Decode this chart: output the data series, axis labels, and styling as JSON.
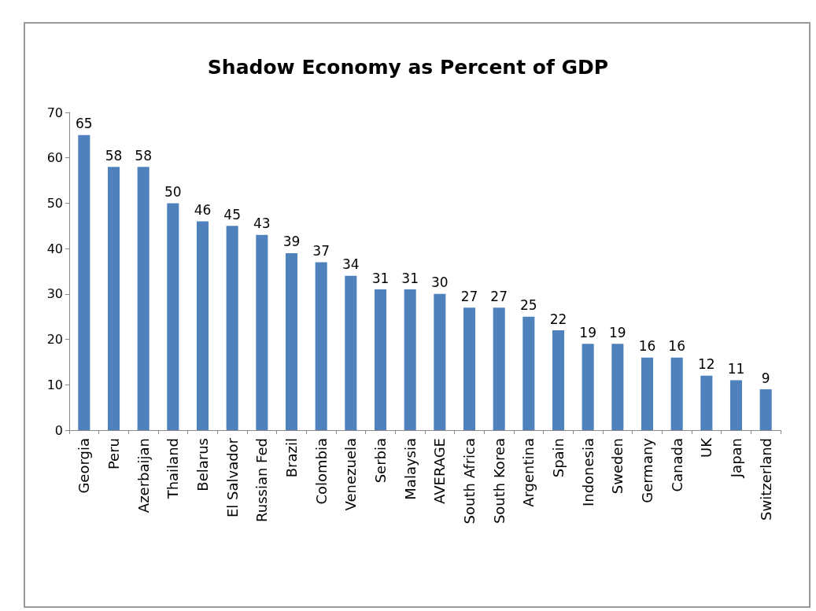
{
  "chart_data": {
    "type": "bar",
    "title": "Shadow Economy as Percent of GDP",
    "categories": [
      "Georgia",
      "Peru",
      "Azerbaijan",
      "Thailand",
      "Belarus",
      "El Salvador",
      "Russian Fed",
      "Brazil",
      "Colombia",
      "Venezuela",
      "Serbia",
      "Malaysia",
      "AVERAGE",
      "South Africa",
      "South Korea",
      "Argentina",
      "Spain",
      "Indonesia",
      "Sweden",
      "Germany",
      "Canada",
      "UK",
      "Japan",
      "Switzerland"
    ],
    "values": [
      65,
      58,
      58,
      50,
      46,
      45,
      43,
      39,
      37,
      34,
      31,
      31,
      30,
      27,
      27,
      25,
      22,
      19,
      19,
      16,
      16,
      12,
      11,
      9
    ],
    "color": "#4f81bd",
    "ylim": [
      0,
      70
    ],
    "yticks": [
      0,
      10,
      20,
      30,
      40,
      50,
      60,
      70
    ],
    "data_labels": true,
    "grid": false
  }
}
